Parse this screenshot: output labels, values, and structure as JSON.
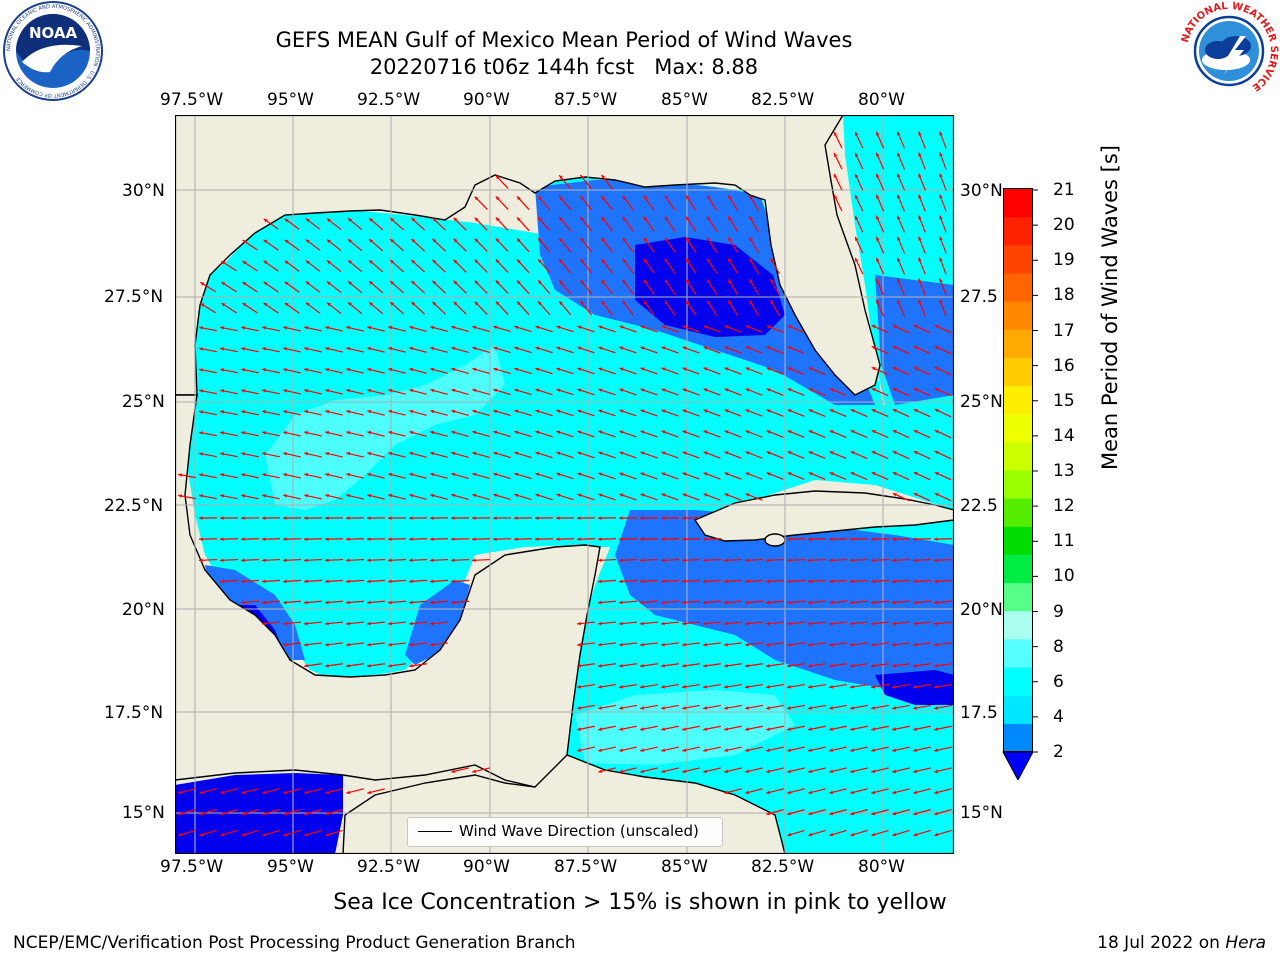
{
  "header": {
    "title_line1": "GEFS MEAN Gulf of Mexico Mean Period of Wind Waves",
    "title_line2": "20220716 t06z 144h fcst   Max: 8.88"
  },
  "logos": {
    "left": {
      "name": "noaa-logo",
      "ring_text": "NATIONAL OCEANIC AND ATMOSPHERIC ADMINISTRATION · U.S. DEPARTMENT OF COMMERCE",
      "center_text": "NOAA"
    },
    "right": {
      "name": "nws-logo",
      "ring_text": "NATIONAL WEATHER SERVICE"
    }
  },
  "axes": {
    "lon_ticks": [
      "97.5°W",
      "95°W",
      "92.5°W",
      "90°W",
      "87.5°W",
      "85°W",
      "82.5°W",
      "80°W"
    ],
    "lat_ticks_left": [
      "30°N",
      "27.5°N",
      "25°N",
      "22.5°N",
      "20°N",
      "17.5°N",
      "15°N"
    ],
    "lat_ticks_right": [
      "30°N",
      "27.5",
      "25°N",
      "22.5",
      "20°N",
      "17.5",
      "15°N"
    ]
  },
  "colorbar": {
    "label": "Mean Period of Wind Waves [s]",
    "ticks": [
      "21",
      "20",
      "19",
      "18",
      "17",
      "16",
      "15",
      "14",
      "13",
      "12",
      "11",
      "10",
      "9",
      "8",
      "6",
      "4",
      "2"
    ],
    "colors": [
      "#ff0000",
      "#ff2200",
      "#ff4400",
      "#ff6600",
      "#ff8800",
      "#ffaa00",
      "#ffcc00",
      "#ffee00",
      "#eeff00",
      "#ccff00",
      "#99ff00",
      "#55ee00",
      "#00dd00",
      "#00ee44",
      "#55ff88",
      "#aaffee",
      "#55ffff",
      "#00ffff",
      "#00e8ff",
      "#0088ff",
      "#0000ff"
    ]
  },
  "legend": {
    "label": "Wind Wave Direction (unscaled)"
  },
  "colors": {
    "land": "#efedde",
    "wave_2_4": "#1e74ff",
    "wave_4_6": "#00ffff",
    "wave_6_8": "#4dffff",
    "wave_8_9": "#aaffff",
    "wave_below_2": "#0000ee",
    "arrows": "#ff0000",
    "grid": "#b0b0b0"
  },
  "footer": {
    "note": "Sea Ice Concentration > 15% is shown in pink to yellow",
    "left": "NCEP/EMC/Verification Post Processing Product Generation Branch",
    "date": "18 Jul 2022 on ",
    "host": "Hera"
  }
}
